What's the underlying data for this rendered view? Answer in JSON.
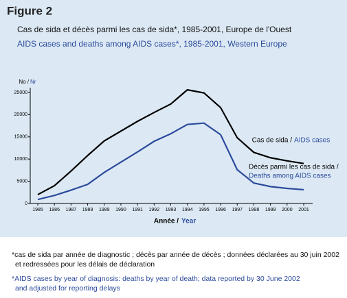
{
  "chart_data": {
    "type": "line",
    "figure": "Figure 2",
    "title": "Cas de sida et décès parmi les cas de sida*, 1985-2001, Europe de l'Ouest",
    "subtitle": "AIDS cases and deaths among AIDS cases*, 1985-2001, Western Europe",
    "y_label_fr": "No /",
    "y_label_en": "Nr",
    "x_label_fr": "Année /",
    "x_label_en": "Year",
    "x": [
      1985,
      1986,
      1987,
      1988,
      1989,
      1990,
      1991,
      1992,
      1993,
      1994,
      1995,
      1996,
      1997,
      1998,
      1999,
      2000,
      2001
    ],
    "xticks": [
      1985,
      1986,
      1987,
      1988,
      1989,
      1990,
      1991,
      1992,
      1993,
      1994,
      1995,
      1996,
      1997,
      1998,
      1999,
      2000,
      2001
    ],
    "ylim": [
      0,
      25000
    ],
    "yticks": [
      0,
      5000,
      10000,
      15000,
      20000,
      25000
    ],
    "series": [
      {
        "name": "AIDS cases",
        "label_fr": "Cas de sida /",
        "color": "#000000",
        "values": [
          2000,
          4000,
          7300,
          10800,
          14100,
          16300,
          18500,
          20500,
          22400,
          25600,
          24900,
          21600,
          14800,
          11500,
          10300,
          9600,
          9000
        ]
      },
      {
        "name": "Deaths among AIDS cases",
        "label_fr": "Décès parmi les cas de sida /",
        "color": "#2b4a9c",
        "values": [
          900,
          1800,
          3000,
          4300,
          7000,
          9300,
          11600,
          14000,
          15700,
          17800,
          18100,
          15500,
          7600,
          4600,
          3800,
          3400,
          3100
        ]
      }
    ],
    "footnote_fr": [
      "*cas de sida par année de diagnostic ; décès par année de décès ; données déclarées au 30 juin 2002",
      "et redressées pour les délais de déclaration"
    ],
    "footnote_en": [
      "*AIDS cases by year of diagnosis: deaths by year of death; data reported by 30 June 2002",
      "and adjusted for reporting delays"
    ]
  }
}
